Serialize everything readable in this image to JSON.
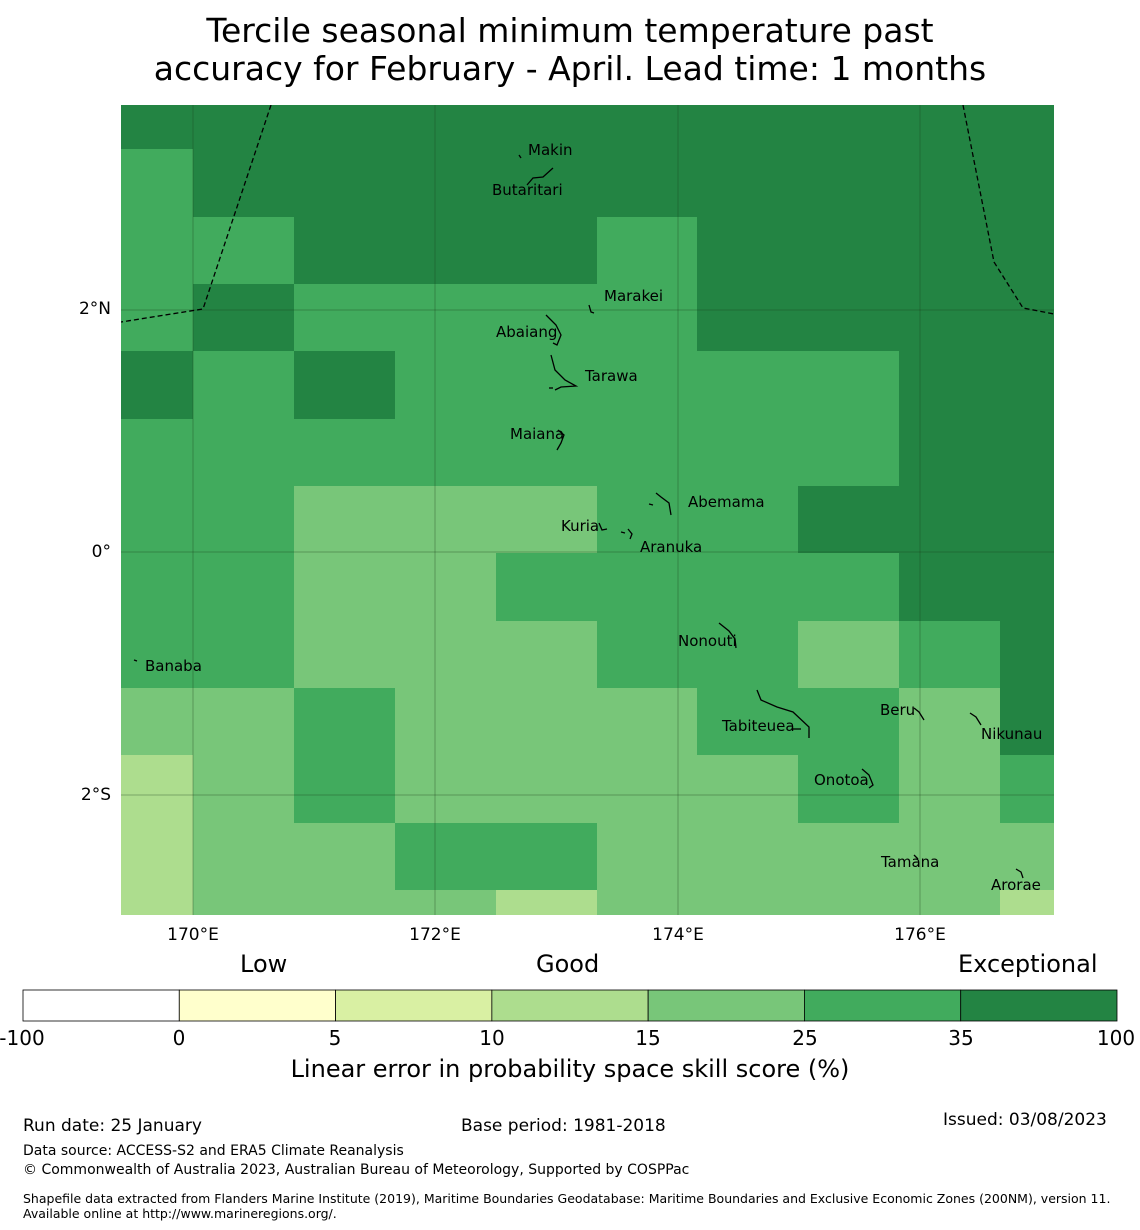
{
  "title": {
    "line1": "Tercile seasonal minimum temperature past",
    "line2": "accuracy for February - April. Lead time: 1 months"
  },
  "map": {
    "lat_labels": [
      "2°N",
      "0°",
      "2°S"
    ],
    "lon_labels": [
      "170°E",
      "172°E",
      "174°E",
      "176°E"
    ],
    "places": [
      "Makin",
      "Butaritari",
      "Marakei",
      "Abaiang",
      "Tarawa",
      "Maiana",
      "Abemama",
      "Kuria",
      "Aranuka",
      "Nonouti",
      "Banaba",
      "Beru",
      "Tabiteuea",
      "Nikunau",
      "Onotoa",
      "Tamana",
      "Arorae"
    ],
    "skill_grid": [
      [
        35,
        35,
        35,
        35,
        35,
        35,
        35,
        35,
        35,
        35
      ],
      [
        25,
        35,
        35,
        35,
        35,
        35,
        35,
        35,
        35,
        35
      ],
      [
        25,
        25,
        35,
        35,
        35,
        25,
        35,
        35,
        35,
        35
      ],
      [
        25,
        35,
        25,
        25,
        25,
        25,
        35,
        35,
        35,
        35
      ],
      [
        35,
        25,
        35,
        25,
        25,
        25,
        25,
        25,
        35,
        35
      ],
      [
        25,
        25,
        25,
        25,
        25,
        25,
        25,
        25,
        35,
        35
      ],
      [
        25,
        25,
        15,
        15,
        15,
        25,
        25,
        35,
        35,
        35
      ],
      [
        25,
        25,
        15,
        15,
        25,
        25,
        25,
        25,
        35,
        35
      ],
      [
        25,
        25,
        15,
        15,
        15,
        25,
        25,
        15,
        25,
        35
      ],
      [
        15,
        15,
        25,
        15,
        15,
        15,
        25,
        25,
        15,
        35
      ],
      [
        10,
        15,
        25,
        15,
        15,
        15,
        15,
        25,
        15,
        25
      ],
      [
        10,
        15,
        15,
        25,
        25,
        15,
        15,
        15,
        15,
        15
      ],
      [
        10,
        15,
        15,
        15,
        10,
        15,
        15,
        15,
        15,
        10
      ]
    ]
  },
  "colorbar": {
    "categories": [
      "Low",
      "Good",
      "Exceptional"
    ],
    "ticks": [
      "-100",
      "0",
      "5",
      "10",
      "15",
      "25",
      "35",
      "100"
    ],
    "colors": [
      "#ffffff",
      "#ffffcc",
      "#d9f0a3",
      "#addd8e",
      "#78c679",
      "#41ab5d",
      "#238443"
    ],
    "label": "Linear error in probability space skill score (%)"
  },
  "footer": {
    "run_date": "Run date: 25 January",
    "base_period": "Base period: 1981-2018",
    "issued": "Issued: 03/08/2023",
    "data_source": "Data source: ACCESS-S2 and ERA5 Climate Reanalysis",
    "copyright": "© Commonwealth of Australia 2023, Australian Bureau of Meteorology, Supported by COSPPac",
    "shapefile": "Shapefile data extracted from Flanders Marine Institute (2019), Maritime Boundaries Geodatabase: Maritime Boundaries and Exclusive Economic Zones (200NM), version 11. Available online at http://www.marineregions.org/."
  }
}
